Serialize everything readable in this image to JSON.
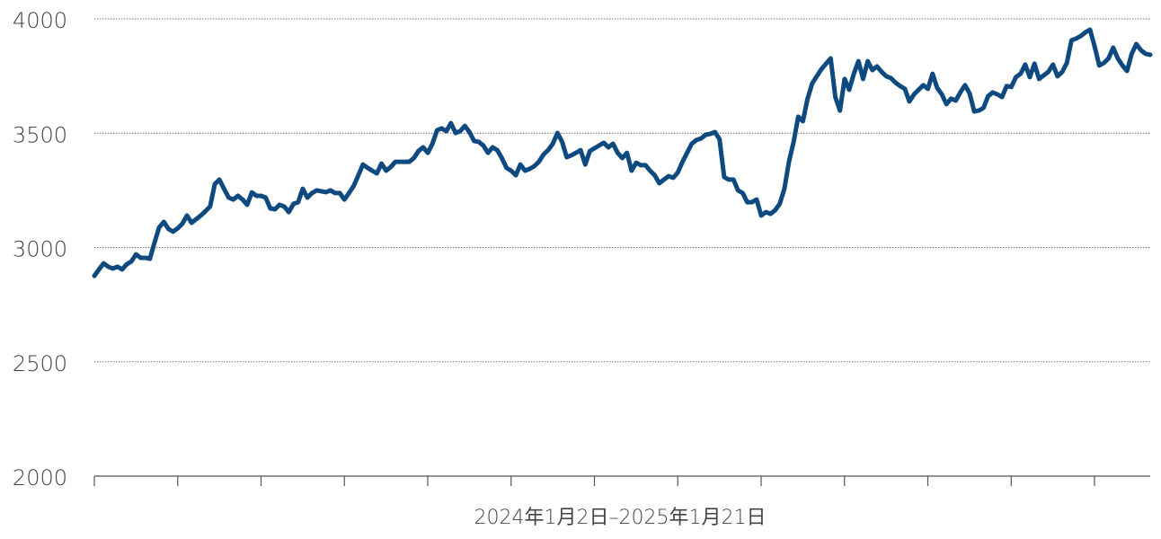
{
  "chart_data": {
    "type": "line",
    "x_label": "2024年1月2日–2025年1月21日",
    "ylim": [
      2000,
      4000
    ],
    "yticks": [
      2000,
      2500,
      3000,
      3500,
      4000
    ],
    "grid": true,
    "series": [
      {
        "color": "#0e4a7f",
        "values": [
          2876,
          2904,
          2931,
          2916,
          2908,
          2916,
          2904,
          2927,
          2939,
          2970,
          2955,
          2955,
          2951,
          3022,
          3088,
          3112,
          3081,
          3069,
          3084,
          3104,
          3140,
          3108,
          3124,
          3140,
          3159,
          3179,
          3277,
          3297,
          3257,
          3218,
          3210,
          3226,
          3210,
          3187,
          3241,
          3226,
          3226,
          3218,
          3171,
          3167,
          3187,
          3179,
          3155,
          3191,
          3198,
          3257,
          3218,
          3238,
          3250,
          3246,
          3242,
          3250,
          3238,
          3238,
          3210,
          3238,
          3269,
          3316,
          3363,
          3348,
          3336,
          3324,
          3367,
          3336,
          3352,
          3375,
          3375,
          3375,
          3375,
          3391,
          3422,
          3438,
          3414,
          3454,
          3513,
          3521,
          3509,
          3544,
          3501,
          3509,
          3532,
          3505,
          3466,
          3462,
          3446,
          3414,
          3438,
          3426,
          3391,
          3348,
          3336,
          3316,
          3363,
          3336,
          3344,
          3356,
          3375,
          3407,
          3426,
          3454,
          3501,
          3462,
          3395,
          3403,
          3414,
          3426,
          3363,
          3422,
          3434,
          3446,
          3458,
          3438,
          3454,
          3414,
          3391,
          3414,
          3336,
          3371,
          3360,
          3360,
          3336,
          3316,
          3281,
          3297,
          3312,
          3305,
          3328,
          3375,
          3414,
          3454,
          3470,
          3477,
          3493,
          3497,
          3505,
          3474,
          3308,
          3297,
          3297,
          3250,
          3238,
          3198,
          3198,
          3210,
          3140,
          3155,
          3147,
          3163,
          3191,
          3257,
          3375,
          3462,
          3572,
          3552,
          3650,
          3717,
          3749,
          3780,
          3804,
          3827,
          3658,
          3599,
          3737,
          3690,
          3760,
          3815,
          3737,
          3815,
          3776,
          3792,
          3768,
          3749,
          3741,
          3721,
          3706,
          3694,
          3639,
          3670,
          3690,
          3710,
          3694,
          3760,
          3698,
          3670,
          3627,
          3651,
          3643,
          3678,
          3710,
          3674,
          3595,
          3599,
          3611,
          3662,
          3678,
          3670,
          3658,
          3706,
          3702,
          3745,
          3760,
          3800,
          3745,
          3804,
          3737,
          3753,
          3768,
          3800,
          3749,
          3768,
          3807,
          3906,
          3914,
          3925,
          3941,
          3953,
          3878,
          3796,
          3807,
          3827,
          3874,
          3827,
          3796,
          3772,
          3847,
          3890,
          3863,
          3847,
          3843
        ]
      }
    ]
  }
}
